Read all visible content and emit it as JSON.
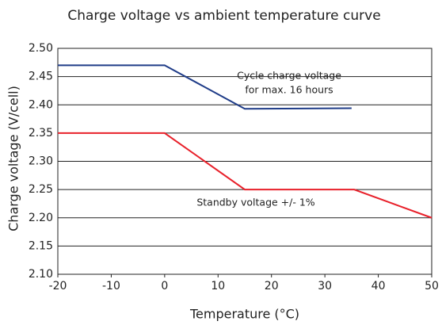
{
  "chart_data": {
    "type": "line",
    "title": "Charge voltage vs ambient temperature curve",
    "x_label": "Temperature (°C)",
    "y_label": "Charge voltage (V/cell)",
    "series": [
      {
        "color": "#1f3c88",
        "x": [
          -20,
          0,
          15,
          35
        ],
        "values": [
          2.47,
          2.47,
          2.393,
          2.394
        ]
      },
      {
        "color": "#e8202a",
        "x": [
          -20,
          0,
          15,
          35.5,
          50
        ],
        "values": [
          2.35,
          2.35,
          2.25,
          2.25,
          2.2
        ]
      }
    ],
    "annotations": [
      "Cycle charge voltage",
      "for max. 16 hours",
      "Standby voltage +/- 1%"
    ],
    "xlim": [
      -20,
      50
    ],
    "xticks": [
      -20,
      -10,
      0,
      10,
      20,
      30,
      40,
      50
    ],
    "ylim": [
      2.1,
      2.5
    ],
    "yticks": [
      {
        "value": 2.1,
        "label": "2.10"
      },
      {
        "value": 2.15,
        "label": "2.15"
      },
      {
        "value": 2.2,
        "label": "2.20"
      },
      {
        "value": 2.25,
        "label": "2.25"
      },
      {
        "value": 2.3,
        "label": "2.30"
      },
      {
        "value": 2.35,
        "label": "2.35"
      },
      {
        "value": 2.4,
        "label": "2.40"
      },
      {
        "value": 2.45,
        "label": "2.45"
      },
      {
        "value": 2.5,
        "label": "2.50"
      }
    ],
    "grid": true
  }
}
